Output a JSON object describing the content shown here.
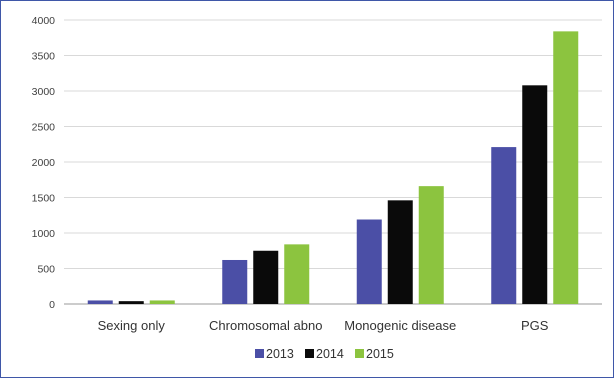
{
  "chart_data": {
    "type": "bar",
    "categories": [
      "Sexing only",
      "Chromosomal abno",
      "Monogenic disease",
      "PGS"
    ],
    "series": [
      {
        "name": "2013",
        "values": [
          50,
          620,
          1190,
          2210
        ],
        "color": "#4b4fa6"
      },
      {
        "name": "2014",
        "values": [
          40,
          750,
          1460,
          3080
        ],
        "color": "#0a0a0a"
      },
      {
        "name": "2015",
        "values": [
          50,
          840,
          1660,
          3840
        ],
        "color": "#8cc43f"
      }
    ],
    "ylim": [
      0,
      4000
    ],
    "yticks": [
      "0",
      "500",
      "1000",
      "1500",
      "2000",
      "2500",
      "3000",
      "3500",
      "4000"
    ],
    "grid": true,
    "legend_position": "bottom"
  }
}
